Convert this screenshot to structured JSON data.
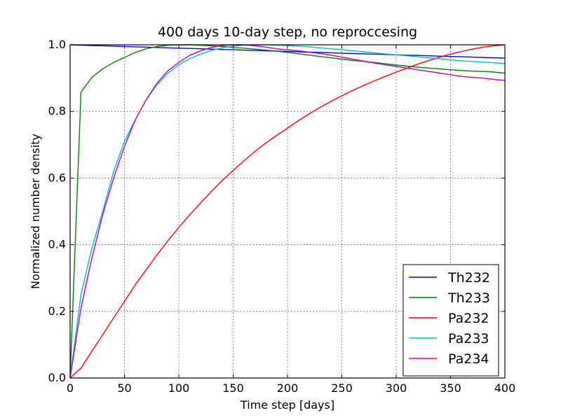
{
  "chart_data": {
    "type": "line",
    "title": "400 days 10-day step, no reproccesing",
    "xlabel": "Time step [days]",
    "ylabel": "Normalized number density",
    "xlim": [
      0,
      400
    ],
    "ylim": [
      0,
      1.0
    ],
    "x_ticks": [
      0,
      50,
      100,
      150,
      200,
      250,
      300,
      350,
      400
    ],
    "y_ticks": [
      0.0,
      0.2,
      0.4,
      0.6,
      0.8,
      1.0
    ],
    "x_tick_labels": [
      "0",
      "50",
      "100",
      "150",
      "200",
      "250",
      "300",
      "350",
      "400"
    ],
    "y_tick_labels": [
      "0.0",
      "0.2",
      "0.4",
      "0.6",
      "0.8",
      "1.0"
    ],
    "grid": true,
    "legend_position": "lower-right",
    "x": [
      0,
      10,
      20,
      30,
      40,
      50,
      60,
      70,
      80,
      90,
      100,
      110,
      120,
      130,
      140,
      150,
      160,
      170,
      180,
      190,
      200,
      210,
      220,
      230,
      240,
      250,
      260,
      270,
      280,
      290,
      300,
      310,
      320,
      330,
      340,
      350,
      360,
      370,
      380,
      390,
      400
    ],
    "series": [
      {
        "name": "Th232",
        "color": "#0000ff",
        "values": [
          1.0,
          0.999,
          0.998,
          0.997,
          0.996,
          0.995,
          0.994,
          0.993,
          0.992,
          0.991,
          0.99,
          0.989,
          0.988,
          0.987,
          0.986,
          0.985,
          0.984,
          0.983,
          0.982,
          0.981,
          0.98,
          0.979,
          0.978,
          0.977,
          0.976,
          0.975,
          0.974,
          0.973,
          0.972,
          0.971,
          0.97,
          0.969,
          0.968,
          0.967,
          0.966,
          0.965,
          0.964,
          0.963,
          0.962,
          0.961,
          0.96
        ]
      },
      {
        "name": "Th233",
        "color": "#008000",
        "values": [
          0.0,
          0.858,
          0.902,
          0.928,
          0.947,
          0.962,
          0.977,
          0.988,
          0.995,
          0.999,
          1.0,
          1.0,
          0.999,
          0.997,
          0.995,
          0.992,
          0.99,
          0.987,
          0.984,
          0.981,
          0.977,
          0.973,
          0.969,
          0.965,
          0.961,
          0.957,
          0.953,
          0.95,
          0.947,
          0.943,
          0.939,
          0.936,
          0.933,
          0.93,
          0.928,
          0.925,
          0.923,
          0.921,
          0.92,
          0.918,
          0.915
        ]
      },
      {
        "name": "Pa232",
        "color": "#ff0000",
        "values": [
          0.0,
          0.03,
          0.08,
          0.13,
          0.18,
          0.23,
          0.28,
          0.325,
          0.37,
          0.412,
          0.452,
          0.49,
          0.525,
          0.56,
          0.593,
          0.623,
          0.652,
          0.68,
          0.705,
          0.728,
          0.75,
          0.772,
          0.793,
          0.812,
          0.83,
          0.847,
          0.863,
          0.878,
          0.892,
          0.905,
          0.918,
          0.93,
          0.942,
          0.953,
          0.963,
          0.972,
          0.98,
          0.987,
          0.993,
          0.997,
          1.0
        ]
      },
      {
        "name": "Pa233",
        "color": "#00bfbf",
        "values": [
          0.0,
          0.25,
          0.39,
          0.5,
          0.62,
          0.71,
          0.775,
          0.835,
          0.88,
          0.915,
          0.94,
          0.958,
          0.972,
          0.983,
          0.991,
          0.996,
          0.999,
          1.0,
          1.0,
          0.999,
          0.998,
          0.996,
          0.994,
          0.991,
          0.988,
          0.985,
          0.982,
          0.979,
          0.976,
          0.973,
          0.97,
          0.967,
          0.964,
          0.961,
          0.958,
          0.955,
          0.952,
          0.95,
          0.948,
          0.946,
          0.944
        ]
      },
      {
        "name": "Pa234",
        "color": "#bf00bf",
        "values": [
          0.0,
          0.21,
          0.36,
          0.49,
          0.6,
          0.695,
          0.775,
          0.835,
          0.885,
          0.922,
          0.947,
          0.968,
          0.982,
          0.992,
          0.998,
          1.0,
          1.0,
          0.997,
          0.993,
          0.988,
          0.985,
          0.982,
          0.978,
          0.974,
          0.969,
          0.963,
          0.957,
          0.951,
          0.945,
          0.94,
          0.935,
          0.93,
          0.925,
          0.92,
          0.915,
          0.91,
          0.905,
          0.902,
          0.9,
          0.896,
          0.893
        ]
      }
    ]
  }
}
